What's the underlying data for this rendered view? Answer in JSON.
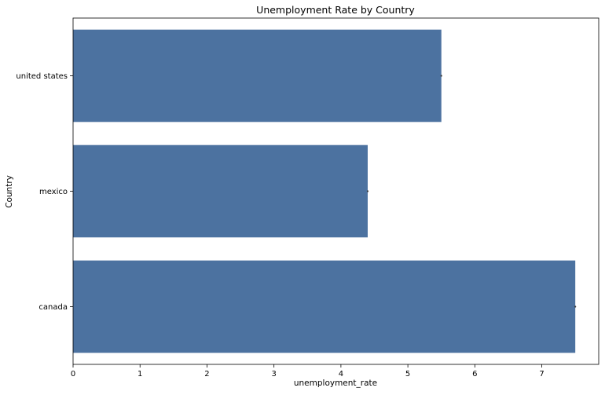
{
  "chart_data": {
    "type": "bar",
    "orientation": "horizontal",
    "title": "Unemployment Rate by Country",
    "xlabel": "unemployment_rate",
    "ylabel": "Country",
    "categories": [
      "united states",
      "mexico",
      "canada"
    ],
    "values": [
      5.5,
      4.4,
      7.5
    ],
    "xlim": [
      0,
      7.85
    ],
    "xticks": [
      0,
      1,
      2,
      3,
      4,
      5,
      6,
      7
    ],
    "grid": false,
    "legend": "none",
    "bar_color": "#4c72a0"
  }
}
